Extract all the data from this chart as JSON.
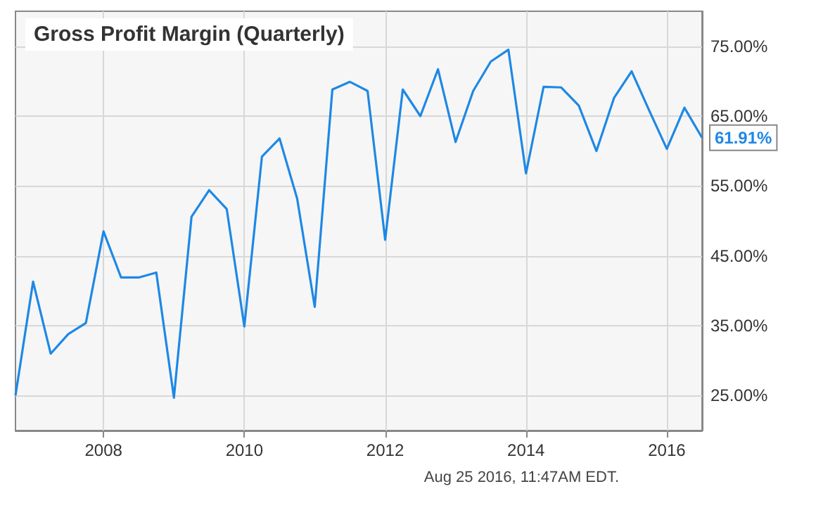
{
  "chart_data": {
    "type": "line",
    "title": "Gross Profit Margin (Quarterly)",
    "x": [
      2006.75,
      2007,
      2007.25,
      2007.5,
      2007.75,
      2008,
      2008.25,
      2008.5,
      2008.75,
      2009,
      2009.25,
      2009.5,
      2009.75,
      2010,
      2010.25,
      2010.5,
      2010.75,
      2011,
      2011.25,
      2011.5,
      2011.75,
      2012,
      2012.25,
      2012.5,
      2012.75,
      2013,
      2013.25,
      2013.5,
      2013.75,
      2014,
      2014.25,
      2014.5,
      2014.75,
      2015,
      2015.25,
      2015.5,
      2015.75,
      2016,
      2016.25,
      2016.5
    ],
    "series": [
      {
        "color": "#1e88e5",
        "values": [
          25.0,
          41.3,
          31.0,
          33.8,
          35.4,
          48.5,
          41.9,
          41.9,
          42.6,
          24.7,
          50.6,
          54.4,
          51.7,
          34.9,
          59.2,
          61.8,
          53.2,
          37.7,
          68.8,
          69.9,
          68.6,
          47.3,
          68.8,
          65.0,
          71.7,
          61.3,
          68.6,
          72.8,
          74.5,
          56.8,
          69.2,
          69.1,
          66.5,
          60.0,
          67.6,
          71.4,
          65.8,
          60.3,
          66.2,
          61.91
        ]
      }
    ],
    "xlim": [
      2006.75,
      2016.5
    ],
    "xticks": [
      2008,
      2010,
      2012,
      2014,
      2016
    ],
    "ylim": [
      20,
      80
    ],
    "yticks": [
      {
        "value": 25,
        "label": "25.00%"
      },
      {
        "value": 35,
        "label": "35.00%"
      },
      {
        "value": 45,
        "label": "45.00%"
      },
      {
        "value": 55,
        "label": "55.00%"
      },
      {
        "value": 65,
        "label": "65.00%"
      },
      {
        "value": 75,
        "label": "75.00%"
      }
    ],
    "grid": true,
    "marker": "none",
    "line_style": "solid",
    "annotations": [
      {
        "text": "61.91%",
        "x": 2016.5,
        "y": 61.91
      },
      "Aug 25 2016, 11:47AM EDT."
    ]
  }
}
